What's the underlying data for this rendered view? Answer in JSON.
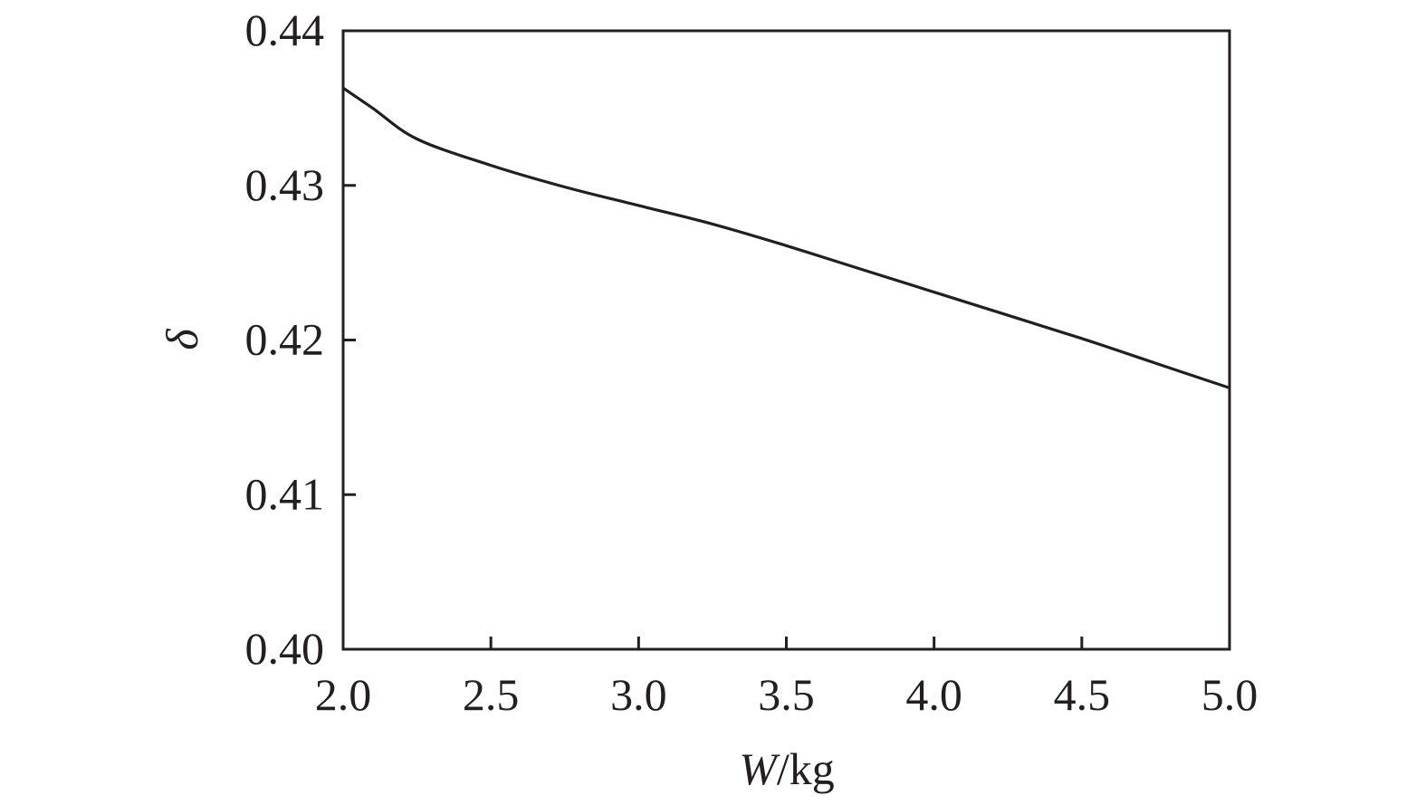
{
  "chart_data": {
    "type": "line",
    "title": "",
    "xlabel": "W/kg",
    "xlabel_parts": {
      "var": "W",
      "unit": "/kg"
    },
    "ylabel": "δ",
    "xlim": [
      2.0,
      5.0
    ],
    "ylim": [
      0.4,
      0.44
    ],
    "grid": false,
    "legend": null,
    "x_ticks": [
      "2.0",
      "2.5",
      "3.0",
      "3.5",
      "4.0",
      "4.5",
      "5.0"
    ],
    "y_ticks": [
      "0.40",
      "0.41",
      "0.42",
      "0.43",
      "0.44"
    ],
    "series": [
      {
        "name": "δ",
        "color": "#231f20",
        "x": [
          2.0,
          2.1,
          2.25,
          2.5,
          2.75,
          3.0,
          3.25,
          3.5,
          3.75,
          4.0,
          4.25,
          4.5,
          4.75,
          5.0
        ],
        "values": [
          0.4363,
          0.435,
          0.433,
          0.4313,
          0.4299,
          0.4287,
          0.4275,
          0.4261,
          0.4246,
          0.4231,
          0.4216,
          0.4201,
          0.4185,
          0.4169
        ]
      }
    ]
  }
}
